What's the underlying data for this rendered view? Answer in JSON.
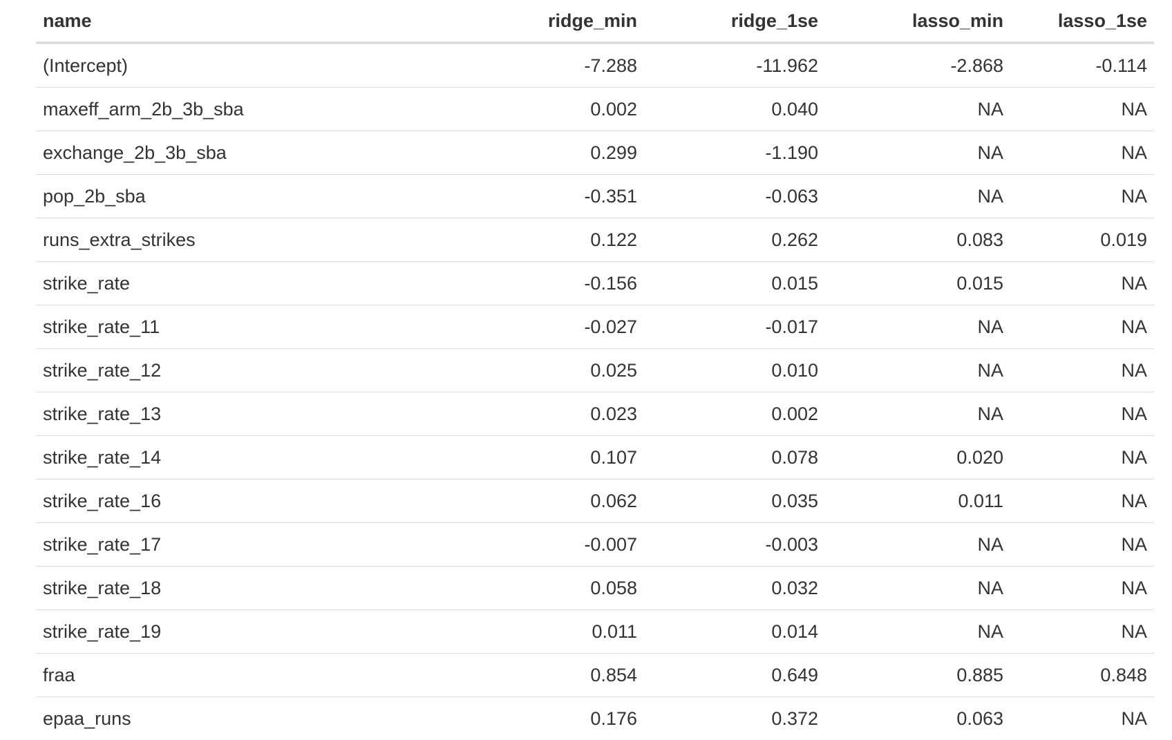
{
  "table": {
    "columns": [
      "name",
      "ridge_min",
      "ridge_1se",
      "lasso_min",
      "lasso_1se"
    ],
    "rows": [
      [
        "(Intercept)",
        "-7.288",
        "-11.962",
        "-2.868",
        "-0.114"
      ],
      [
        "maxeff_arm_2b_3b_sba",
        "0.002",
        "0.040",
        "NA",
        "NA"
      ],
      [
        "exchange_2b_3b_sba",
        "0.299",
        "-1.190",
        "NA",
        "NA"
      ],
      [
        "pop_2b_sba",
        "-0.351",
        "-0.063",
        "NA",
        "NA"
      ],
      [
        "runs_extra_strikes",
        "0.122",
        "0.262",
        "0.083",
        "0.019"
      ],
      [
        "strike_rate",
        "-0.156",
        "0.015",
        "0.015",
        "NA"
      ],
      [
        "strike_rate_11",
        "-0.027",
        "-0.017",
        "NA",
        "NA"
      ],
      [
        "strike_rate_12",
        "0.025",
        "0.010",
        "NA",
        "NA"
      ],
      [
        "strike_rate_13",
        "0.023",
        "0.002",
        "NA",
        "NA"
      ],
      [
        "strike_rate_14",
        "0.107",
        "0.078",
        "0.020",
        "NA"
      ],
      [
        "strike_rate_16",
        "0.062",
        "0.035",
        "0.011",
        "NA"
      ],
      [
        "strike_rate_17",
        "-0.007",
        "-0.003",
        "NA",
        "NA"
      ],
      [
        "strike_rate_18",
        "0.058",
        "0.032",
        "NA",
        "NA"
      ],
      [
        "strike_rate_19",
        "0.011",
        "0.014",
        "NA",
        "NA"
      ],
      [
        "fraa",
        "0.854",
        "0.649",
        "0.885",
        "0.848"
      ],
      [
        "epaa_runs",
        "0.176",
        "0.372",
        "0.063",
        "NA"
      ]
    ]
  }
}
